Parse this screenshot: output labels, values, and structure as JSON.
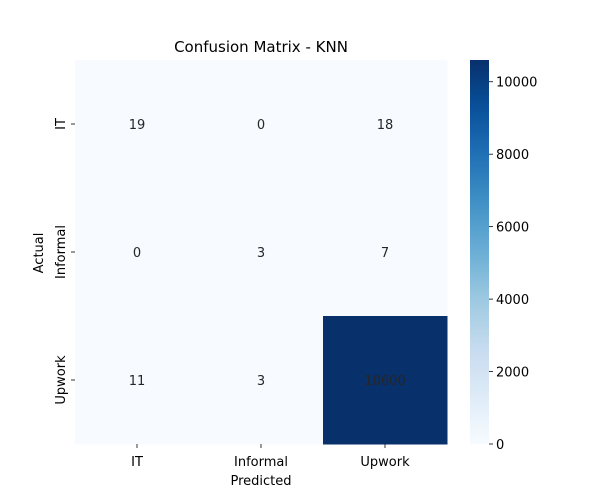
{
  "chart_data": {
    "type": "heatmap",
    "title": "Confusion Matrix - KNN",
    "xlabel": "Predicted",
    "ylabel": "Actual",
    "x_categories": [
      "IT",
      "Informal",
      "Upwork"
    ],
    "y_categories": [
      "IT",
      "Informal",
      "Upwork"
    ],
    "values": [
      [
        19,
        0,
        18
      ],
      [
        0,
        3,
        7
      ],
      [
        11,
        3,
        10600
      ]
    ],
    "colorbar": {
      "min": 0,
      "max": 10600,
      "ticks": [
        0,
        2000,
        4000,
        6000,
        8000,
        10000
      ],
      "colormap": "Blues"
    }
  },
  "colors": {
    "low": "#f7fbff",
    "high": "#08306b",
    "text_dark": "#262626",
    "text_light": "#ffffff"
  }
}
